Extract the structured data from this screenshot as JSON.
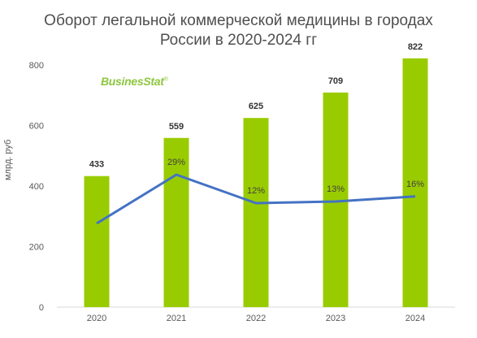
{
  "title_line1": "Оборот легальной коммерческой медицины в городах",
  "title_line2": "России в 2020-2024 гг",
  "logo": {
    "text": "BusinesStat",
    "mark": "®"
  },
  "colors": {
    "bar": "#99cc00",
    "line": "#4472c4",
    "axis": "#d9d9d9"
  },
  "chart_data": {
    "type": "bar",
    "title": "Оборот легальной коммерческой медицины в городах России в 2020-2024 гг",
    "ylabel": "млрд. руб",
    "ylim": [
      0,
      800
    ],
    "yticks": [
      0,
      200,
      400,
      600,
      800
    ],
    "grid": false,
    "categories": [
      "2020",
      "2021",
      "2022",
      "2023",
      "2024"
    ],
    "series": [
      {
        "type": "bar",
        "values": [
          433,
          559,
          625,
          709,
          822
        ]
      },
      {
        "type": "line",
        "values": [
          null,
          29,
          12,
          13,
          16
        ],
        "labels": [
          "",
          "29%",
          "12%",
          "13%",
          "16%"
        ],
        "unit": "%"
      }
    ]
  }
}
